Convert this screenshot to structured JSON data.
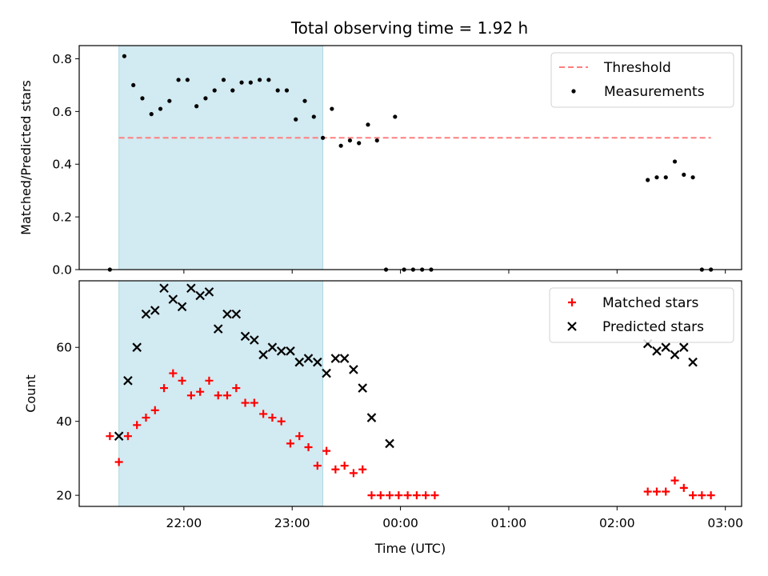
{
  "chart_data": [
    {
      "type": "scatter",
      "title": "Total observing time = 1.92 h",
      "xlabel": "",
      "ylabel": "Matched/Predicted stars",
      "ylim": [
        0,
        0.85
      ],
      "yticks": [
        "0.0",
        "0.2",
        "0.4",
        "0.6",
        "0.8"
      ],
      "ytick_values": [
        0,
        0.2,
        0.4,
        0.6,
        0.8
      ],
      "xticks": [
        "22:00",
        "23:00",
        "00:00",
        "01:00",
        "02:00",
        "03:00"
      ],
      "xtick_values": [
        "22:00",
        "23:00",
        "00:00",
        "01:00",
        "02:00",
        "03:00"
      ],
      "xlim": [
        "21:02",
        "03:09"
      ],
      "shaded_interval": [
        "21:24",
        "23:17"
      ],
      "shade_color": "#add8e6",
      "legend_position": "top-right",
      "threshold": {
        "name": "Threshold",
        "y": 0.5,
        "x_start": "21:24",
        "x_end": "02:52",
        "color": "#ff7f7f"
      },
      "series": [
        {
          "name": "Measurements",
          "color": "#000000",
          "marker": "dot",
          "x": [
            "21:19",
            "21:27",
            "21:32",
            "21:37",
            "21:42",
            "21:47",
            "21:52",
            "21:57",
            "22:02",
            "22:07",
            "22:12",
            "22:17",
            "22:22",
            "22:27",
            "22:32",
            "22:37",
            "22:42",
            "22:47",
            "22:52",
            "22:57",
            "23:02",
            "23:07",
            "23:12",
            "23:17",
            "23:22",
            "23:27",
            "23:32",
            "23:37",
            "23:42",
            "23:47",
            "23:52",
            "23:57",
            "00:02",
            "00:07",
            "00:12",
            "00:17",
            "02:17",
            "02:22",
            "02:27",
            "02:32",
            "02:37",
            "02:42",
            "02:47",
            "02:52"
          ],
          "y": [
            0.0,
            0.81,
            0.7,
            0.65,
            0.59,
            0.61,
            0.64,
            0.72,
            0.72,
            0.62,
            0.65,
            0.68,
            0.72,
            0.68,
            0.71,
            0.71,
            0.72,
            0.72,
            0.68,
            0.68,
            0.57,
            0.64,
            0.58,
            0.5,
            0.61,
            0.47,
            0.49,
            0.48,
            0.55,
            0.49,
            0.0,
            0.58,
            0.0,
            0.0,
            0.0,
            0.0,
            0.34,
            0.35,
            0.35,
            0.41,
            0.36,
            0.35,
            0.0,
            0.0
          ]
        }
      ]
    },
    {
      "type": "scatter",
      "title": "",
      "xlabel": "Time (UTC)",
      "ylabel": "Count",
      "ylim": [
        17,
        78
      ],
      "yticks": [
        "20",
        "40",
        "60"
      ],
      "ytick_values": [
        20,
        40,
        60
      ],
      "xticks": [
        "22:00",
        "23:00",
        "00:00",
        "01:00",
        "02:00",
        "03:00"
      ],
      "xtick_values": [
        "22:00",
        "23:00",
        "00:00",
        "01:00",
        "02:00",
        "03:00"
      ],
      "xlim": [
        "21:02",
        "03:09"
      ],
      "shaded_interval": [
        "21:24",
        "23:17"
      ],
      "shade_color": "#add8e6",
      "legend_position": "top-right",
      "series": [
        {
          "name": "Matched stars",
          "color": "#ff0000",
          "marker": "plus",
          "x": [
            "21:19",
            "21:24",
            "21:29",
            "21:34",
            "21:39",
            "21:44",
            "21:49",
            "21:54",
            "21:59",
            "22:04",
            "22:09",
            "22:14",
            "22:19",
            "22:24",
            "22:29",
            "22:34",
            "22:39",
            "22:44",
            "22:49",
            "22:54",
            "22:59",
            "23:04",
            "23:09",
            "23:14",
            "23:19",
            "23:24",
            "23:29",
            "23:34",
            "23:39",
            "23:44",
            "23:49",
            "23:54",
            "23:59",
            "00:04",
            "00:09",
            "00:14",
            "00:19",
            "02:17",
            "02:22",
            "02:27",
            "02:32",
            "02:37",
            "02:42",
            "02:47",
            "02:52"
          ],
          "y": [
            36,
            29,
            36,
            39,
            41,
            43,
            49,
            53,
            51,
            47,
            48,
            51,
            47,
            47,
            49,
            45,
            45,
            42,
            41,
            40,
            34,
            36,
            33,
            28,
            32,
            27,
            28,
            26,
            27,
            20,
            20,
            20,
            20,
            20,
            20,
            20,
            20,
            21,
            21,
            21,
            24,
            22,
            20,
            20,
            20
          ]
        },
        {
          "name": "Predicted stars",
          "color": "#000000",
          "marker": "x",
          "x": [
            "21:24",
            "21:29",
            "21:34",
            "21:39",
            "21:44",
            "21:49",
            "21:54",
            "21:59",
            "22:04",
            "22:09",
            "22:14",
            "22:19",
            "22:24",
            "22:29",
            "22:34",
            "22:39",
            "22:44",
            "22:49",
            "22:54",
            "22:59",
            "23:04",
            "23:09",
            "23:14",
            "23:19",
            "23:24",
            "23:29",
            "23:34",
            "23:39",
            "23:44",
            "23:54",
            "02:17",
            "02:22",
            "02:27",
            "02:32",
            "02:37",
            "02:42"
          ],
          "y": [
            36,
            51,
            60,
            69,
            70,
            76,
            73,
            71,
            76,
            74,
            75,
            65,
            69,
            69,
            63,
            62,
            58,
            60,
            59,
            59,
            56,
            57,
            56,
            53,
            57,
            57,
            54,
            49,
            41,
            34,
            61,
            59,
            60,
            58,
            60,
            56
          ]
        }
      ]
    }
  ]
}
